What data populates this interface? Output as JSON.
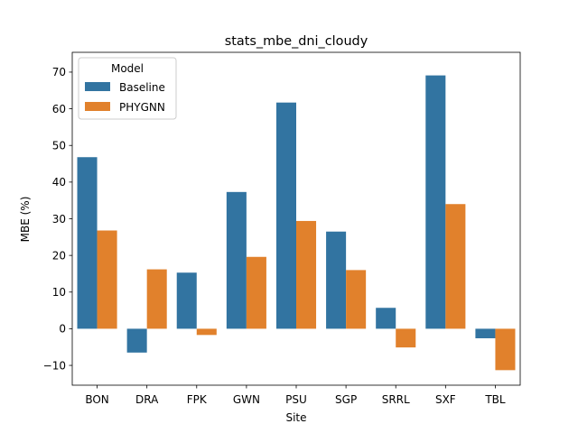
{
  "chart_data": {
    "type": "bar",
    "title": "stats_mbe_dni_cloudy",
    "xlabel": "Site",
    "ylabel": "MBE (%)",
    "categories": [
      "BON",
      "DRA",
      "FPK",
      "GWN",
      "PSU",
      "SGP",
      "SRRL",
      "SXF",
      "TBL"
    ],
    "series": [
      {
        "name": "Baseline",
        "color": "#3274a1",
        "values": [
          46.8,
          -6.5,
          15.3,
          37.3,
          61.7,
          26.5,
          5.7,
          69.1,
          -2.6
        ]
      },
      {
        "name": "PHYGNN",
        "color": "#e1812c",
        "values": [
          26.8,
          16.2,
          -1.7,
          19.6,
          29.4,
          16.0,
          -5.1,
          34.0,
          -11.3
        ]
      }
    ],
    "ylim": [
      -15.4,
      75.4
    ],
    "yticks": [
      -10,
      0,
      10,
      20,
      30,
      40,
      50,
      60,
      70
    ],
    "ytick_labels": [
      "−10",
      "0",
      "10",
      "20",
      "30",
      "40",
      "50",
      "60",
      "70"
    ],
    "legend": {
      "title": "Model",
      "placement": "top-left"
    },
    "grid": false
  }
}
